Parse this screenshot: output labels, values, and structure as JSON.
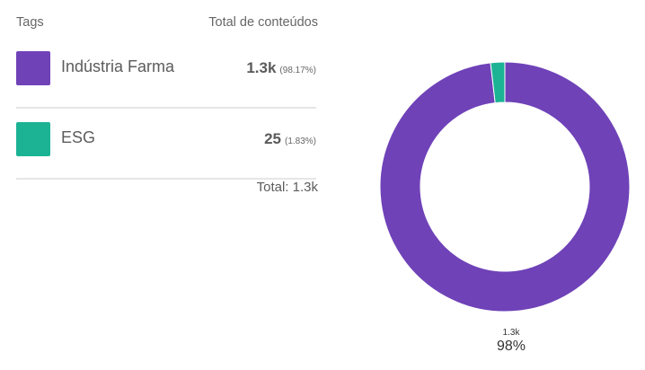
{
  "legend": {
    "header_left": "Tags",
    "header_right": "Total de conteúdos",
    "items": [
      {
        "label": "Indústria Farma",
        "value": "1.3k",
        "percent": "(98.17%)",
        "color": "#6f42b8"
      },
      {
        "label": "ESG",
        "value": "25",
        "percent": "(1.83%)",
        "color": "#1bb394"
      }
    ],
    "total": "Total: 1.3k"
  },
  "chart_data": {
    "type": "pie",
    "donut": true,
    "categories": [
      "Indústria Farma",
      "ESG"
    ],
    "values": [
      98.17,
      1.83
    ],
    "colors": [
      "#6f42b8",
      "#1bb394"
    ],
    "slice_label_small": "1.3k",
    "slice_label_pct": "98%"
  }
}
